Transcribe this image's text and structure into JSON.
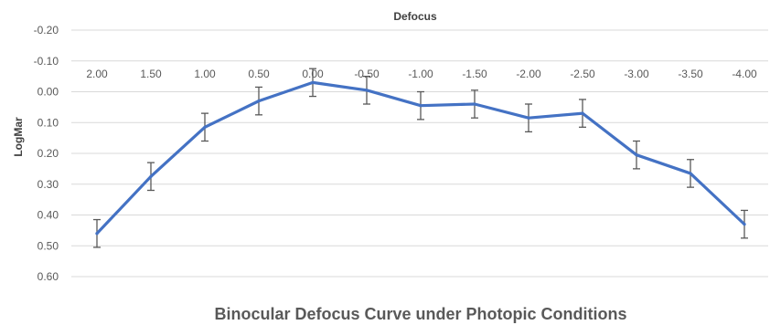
{
  "chart_data": {
    "type": "line",
    "title": "Binocular Defocus Curve under Photopic Conditions",
    "xlabel": "Defocus",
    "ylabel": "LogMar",
    "categories": [
      "2.00",
      "1.50",
      "1.00",
      "0.50",
      "0.00",
      "-0.50",
      "-1.00",
      "-1.50",
      "-2.00",
      "-2.50",
      "-3.00",
      "-3.50",
      "-4.00"
    ],
    "y_ticks": [
      "-0.20",
      "-0.10",
      "0.00",
      "0.10",
      "0.20",
      "0.30",
      "0.40",
      "0.50",
      "0.60"
    ],
    "ylim": [
      -0.2,
      0.6
    ],
    "y_reversed": true,
    "grid": true,
    "series": [
      {
        "values": [
          0.46,
          0.275,
          0.115,
          0.03,
          -0.03,
          -0.005,
          0.045,
          0.04,
          0.085,
          0.07,
          0.205,
          0.265,
          0.43
        ],
        "errors": [
          0.045,
          0.045,
          0.045,
          0.045,
          0.045,
          0.045,
          0.045,
          0.045,
          0.045,
          0.045,
          0.045,
          0.045,
          0.045
        ],
        "color": "#4472C4"
      }
    ],
    "errorbar_color": "#595959",
    "gridline_color": "#D9D9D9"
  }
}
